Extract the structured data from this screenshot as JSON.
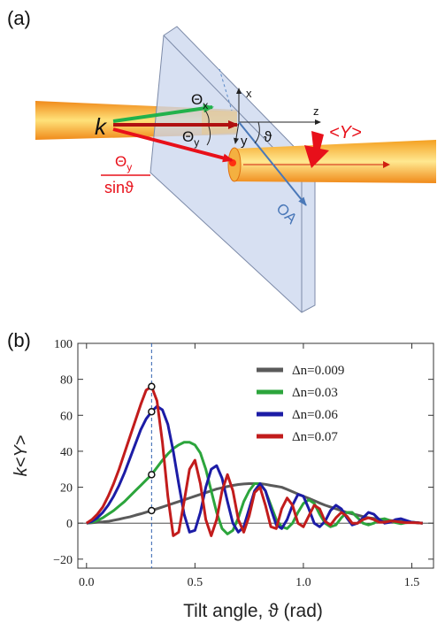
{
  "diagram": {
    "panel_label": "(a)",
    "k": "k",
    "theta_x": {
      "symbol": "Θ",
      "sub": "x"
    },
    "theta_y": {
      "symbol": "Θ",
      "sub": "y"
    },
    "fraction": {
      "numerator": {
        "symbol": "Θ",
        "sub": "y"
      },
      "denominator": "sinϑ"
    },
    "axis_x": "x",
    "axis_z": "z",
    "axis_y": "y",
    "angle": "ϑ",
    "force": "<Y>",
    "optic_axis": "OA"
  },
  "chart_data": {
    "type": "line",
    "panel_label": "(b)",
    "x_label": "Tilt angle,  ϑ (rad)",
    "y_label": "k<Y>",
    "x": [
      0,
      0.025,
      0.05,
      0.075,
      0.1,
      0.125,
      0.15,
      0.175,
      0.2,
      0.225,
      0.25,
      0.275,
      0.3,
      0.325,
      0.35,
      0.375,
      0.4,
      0.425,
      0.45,
      0.475,
      0.5,
      0.525,
      0.55,
      0.575,
      0.6,
      0.625,
      0.65,
      0.675,
      0.7,
      0.725,
      0.75,
      0.775,
      0.8,
      0.825,
      0.85,
      0.875,
      0.9,
      0.925,
      0.95,
      0.975,
      1.0,
      1.025,
      1.05,
      1.075,
      1.1,
      1.125,
      1.15,
      1.175,
      1.2,
      1.225,
      1.25,
      1.275,
      1.3,
      1.325,
      1.35,
      1.375,
      1.4,
      1.425,
      1.45,
      1.475,
      1.5,
      1.525,
      1.55
    ],
    "series": [
      {
        "name": "Δn=0.009",
        "color": "#5a5a5a",
        "values": [
          0,
          0.2,
          0.5,
          0.7,
          1,
          1.6,
          2.2,
          2.9,
          3.5,
          4.4,
          5.2,
          6.1,
          7,
          8,
          9,
          10,
          11,
          12,
          13,
          14,
          15,
          16,
          17,
          18,
          19,
          19.7,
          20.4,
          21,
          21.5,
          21.8,
          22,
          22,
          22,
          21.6,
          21,
          20.5,
          20,
          18.8,
          17.5,
          16.2,
          15,
          13.8,
          12.5,
          11.2,
          10,
          9,
          8,
          7,
          6,
          5.2,
          4.5,
          3.7,
          3,
          2.6,
          2.2,
          1.9,
          1.5,
          1.2,
          1,
          0.7,
          0.5,
          0.2,
          0
        ]
      },
      {
        "name": "Δn=0.03",
        "color": "#2ca53c",
        "values": [
          0,
          0.5,
          1.5,
          3,
          5,
          7,
          9.5,
          12,
          15,
          18,
          21,
          24,
          27,
          31,
          35,
          38.5,
          41.5,
          43.5,
          45,
          45,
          43.5,
          39,
          30,
          18,
          6,
          -3,
          -6,
          -4,
          3,
          12,
          18,
          22,
          22,
          18,
          10,
          2,
          -2,
          -3,
          0,
          6,
          11,
          13,
          11,
          5,
          0,
          -2,
          -1,
          3,
          6,
          6,
          3,
          0,
          -1,
          0,
          2,
          2.5,
          1.5,
          0.3,
          -0.3,
          0.3,
          0.6,
          0.3,
          0
        ]
      },
      {
        "name": "Δn=0.06",
        "color": "#1c1ca6",
        "values": [
          0,
          1,
          3,
          6,
          10,
          15,
          21,
          28,
          36,
          44,
          52,
          58,
          62,
          65,
          63,
          55,
          40,
          22,
          5,
          -5,
          -4,
          6,
          20,
          30,
          32,
          25,
          12,
          0,
          -5,
          -2,
          8,
          18,
          22,
          18,
          8,
          -1,
          -3,
          2,
          10,
          16,
          15,
          8,
          0,
          -2,
          1,
          7,
          10,
          8,
          3,
          -1,
          0,
          3,
          6,
          5,
          2,
          0,
          0.5,
          2,
          2.5,
          1.5,
          0.5,
          0.3,
          0
        ]
      },
      {
        "name": "Δn=0.07",
        "color": "#c21c1c",
        "values": [
          0,
          2,
          5,
          9,
          15,
          22,
          30,
          39,
          48,
          57,
          66,
          74,
          76,
          68,
          45,
          15,
          -7,
          -5,
          12,
          30,
          35,
          22,
          2,
          -7,
          2,
          18,
          27,
          18,
          2,
          -5,
          4,
          17,
          20,
          10,
          -2,
          -3,
          8,
          14,
          10,
          0,
          -2,
          4,
          10,
          8,
          1,
          -1,
          3,
          6,
          4,
          0,
          0,
          2,
          3,
          2,
          0.5,
          0.5,
          1.2,
          1,
          0.5,
          0.3,
          0.3,
          0.2,
          0
        ]
      }
    ],
    "highlight_x": 0.3,
    "xlim": [
      -0.04,
      1.6
    ],
    "ylim": [
      -25,
      100
    ],
    "xticks": [
      {
        "value": 0,
        "label": "0.0"
      },
      {
        "value": 0.5,
        "label": "0.5"
      },
      {
        "value": 1,
        "label": "1.0"
      },
      1.5
    ],
    "yticks": [
      {
        "value": -20,
        "label": "−20"
      },
      0,
      20,
      40,
      60,
      80,
      100
    ],
    "legend": "upper right"
  }
}
